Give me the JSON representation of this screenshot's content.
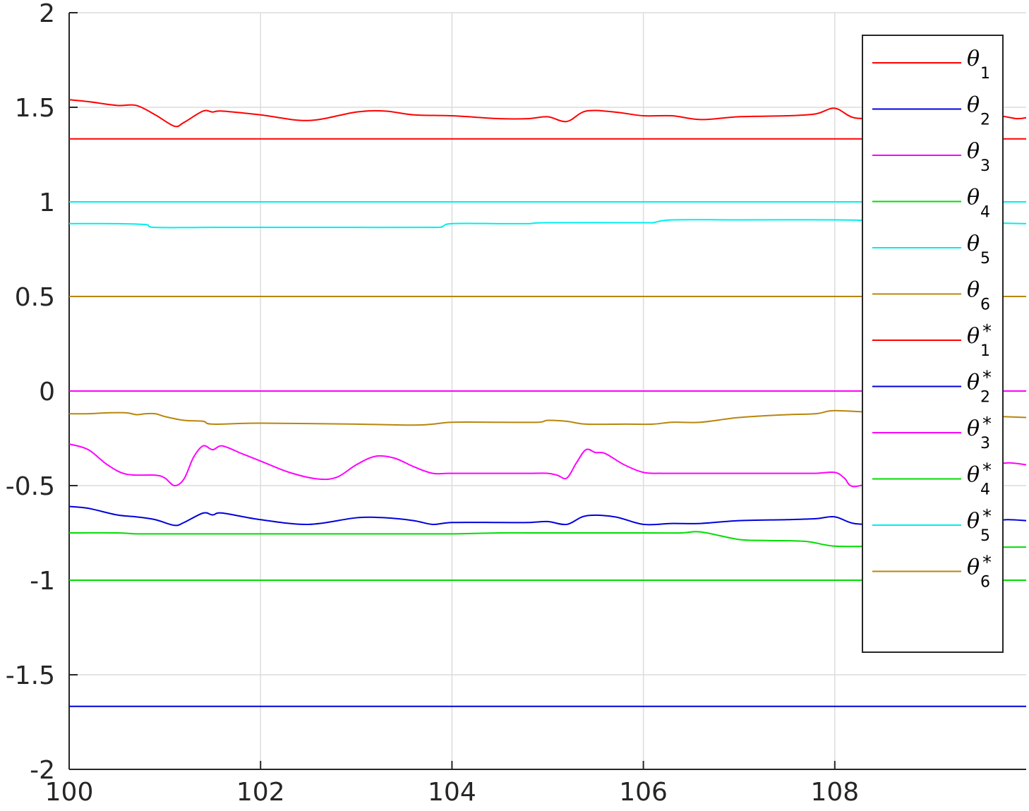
{
  "chart_data": {
    "type": "line",
    "title": "",
    "xlabel": "",
    "ylabel": "",
    "xlim": [
      100,
      110
    ],
    "ylim": [
      -2,
      2
    ],
    "xticks": [
      100,
      102,
      104,
      106,
      108
    ],
    "xtick_labels": [
      "100",
      "102",
      "104",
      "106",
      "108"
    ],
    "yticks": [
      2,
      1.5,
      1,
      0.5,
      0,
      -0.5,
      -1,
      -1.5,
      -2
    ],
    "ytick_labels": [
      "2",
      "1.5",
      "1",
      "0.5",
      "0",
      "-0.5",
      "-1",
      "-1.5",
      "-2"
    ],
    "grid": true,
    "legend_position": "top-right",
    "series": [
      {
        "name": "θ1",
        "symbol": "θ",
        "sub": "1",
        "sup": "",
        "color": "#ff0000",
        "x": [
          100,
          100.2,
          100.5,
          100.7,
          100.9,
          101.1,
          101.2,
          101.4,
          101.5,
          101.6,
          102.0,
          102.5,
          103.0,
          103.3,
          103.6,
          104.0,
          104.5,
          104.8,
          105.0,
          105.2,
          105.4,
          105.7,
          106.0,
          106.3,
          106.6,
          107.0,
          107.5,
          107.8,
          108.0,
          108.2,
          108.5,
          108.8,
          109.1,
          109.3,
          109.5,
          109.7,
          109.9,
          110
        ],
        "y": [
          1.54,
          1.53,
          1.51,
          1.51,
          1.46,
          1.4,
          1.42,
          1.48,
          1.475,
          1.48,
          1.46,
          1.43,
          1.475,
          1.48,
          1.46,
          1.455,
          1.44,
          1.44,
          1.45,
          1.425,
          1.48,
          1.475,
          1.455,
          1.455,
          1.435,
          1.45,
          1.455,
          1.465,
          1.495,
          1.445,
          1.44,
          1.435,
          1.45,
          1.46,
          1.44,
          1.455,
          1.44,
          1.445
        ]
      },
      {
        "name": "θ2",
        "symbol": "θ",
        "sub": "2",
        "sup": "",
        "color": "#0000dd",
        "x": [
          100,
          100.2,
          100.5,
          100.7,
          100.9,
          101.1,
          101.2,
          101.4,
          101.5,
          101.6,
          102.0,
          102.5,
          103.0,
          103.3,
          103.6,
          103.8,
          104.0,
          104.5,
          104.8,
          105.0,
          105.2,
          105.4,
          105.7,
          106.0,
          106.3,
          106.6,
          107.0,
          107.5,
          107.8,
          108.0,
          108.2,
          108.5,
          108.8,
          109.1,
          109.4,
          109.6,
          109.8,
          110
        ],
        "y": [
          -0.61,
          -0.62,
          -0.655,
          -0.665,
          -0.68,
          -0.71,
          -0.695,
          -0.645,
          -0.655,
          -0.645,
          -0.68,
          -0.705,
          -0.67,
          -0.67,
          -0.685,
          -0.705,
          -0.695,
          -0.695,
          -0.695,
          -0.69,
          -0.705,
          -0.66,
          -0.665,
          -0.705,
          -0.7,
          -0.7,
          -0.685,
          -0.68,
          -0.675,
          -0.665,
          -0.7,
          -0.705,
          -0.695,
          -0.69,
          -0.68,
          -0.69,
          -0.68,
          -0.685
        ]
      },
      {
        "name": "θ3",
        "symbol": "θ",
        "sub": "3",
        "sup": "",
        "color": "#ff00ff",
        "x": [
          100,
          100.2,
          100.4,
          100.6,
          100.9,
          101.0,
          101.1,
          101.2,
          101.3,
          101.4,
          101.5,
          101.6,
          101.8,
          102.0,
          102.3,
          102.6,
          102.8,
          103.0,
          103.2,
          103.4,
          103.6,
          103.8,
          104.0,
          104.5,
          104.8,
          105.0,
          105.1,
          105.2,
          105.3,
          105.4,
          105.5,
          105.6,
          105.8,
          106.0,
          106.2,
          106.6,
          107.0,
          107.5,
          107.8,
          108.0,
          108.1,
          108.2,
          108.5,
          108.8,
          109.1,
          109.4,
          109.6,
          109.8,
          110
        ],
        "y": [
          -0.28,
          -0.31,
          -0.39,
          -0.44,
          -0.445,
          -0.46,
          -0.5,
          -0.465,
          -0.35,
          -0.29,
          -0.31,
          -0.29,
          -0.33,
          -0.37,
          -0.43,
          -0.465,
          -0.455,
          -0.39,
          -0.345,
          -0.355,
          -0.4,
          -0.435,
          -0.435,
          -0.435,
          -0.435,
          -0.435,
          -0.445,
          -0.46,
          -0.38,
          -0.31,
          -0.325,
          -0.33,
          -0.39,
          -0.43,
          -0.435,
          -0.435,
          -0.435,
          -0.435,
          -0.435,
          -0.43,
          -0.46,
          -0.505,
          -0.47,
          -0.46,
          -0.445,
          -0.44,
          -0.4,
          -0.38,
          -0.39
        ]
      },
      {
        "name": "θ4",
        "symbol": "θ",
        "sub": "4",
        "sup": "",
        "color": "#00dd00",
        "x": [
          100,
          100.5,
          100.7,
          101.0,
          102.0,
          103.0,
          104.0,
          104.5,
          105.0,
          106.0,
          106.4,
          106.6,
          107.0,
          107.3,
          107.7,
          108.0,
          108.5,
          109.0,
          109.5,
          110
        ],
        "y": [
          -0.75,
          -0.75,
          -0.755,
          -0.755,
          -0.755,
          -0.755,
          -0.755,
          -0.75,
          -0.75,
          -0.75,
          -0.75,
          -0.745,
          -0.785,
          -0.79,
          -0.795,
          -0.82,
          -0.82,
          -0.82,
          -0.825,
          -0.825
        ]
      },
      {
        "name": "θ5",
        "symbol": "θ",
        "sub": "5",
        "sup": "",
        "color": "#00eeee",
        "x": [
          100,
          100.5,
          100.8,
          100.9,
          101.5,
          102.0,
          103.0,
          103.8,
          103.9,
          104.0,
          104.5,
          104.8,
          105.0,
          106.0,
          106.1,
          106.3,
          107.0,
          108.0,
          108.5,
          109.0,
          109.5,
          110
        ],
        "y": [
          0.885,
          0.885,
          0.88,
          0.865,
          0.865,
          0.865,
          0.865,
          0.865,
          0.87,
          0.885,
          0.885,
          0.885,
          0.89,
          0.89,
          0.89,
          0.905,
          0.905,
          0.905,
          0.9,
          0.895,
          0.89,
          0.885
        ]
      },
      {
        "name": "θ6",
        "symbol": "θ",
        "sub": "6",
        "sup": "",
        "color": "#b8860b",
        "x": [
          100,
          100.2,
          100.4,
          100.6,
          100.7,
          100.8,
          100.9,
          101.0,
          101.2,
          101.4,
          101.5,
          102.0,
          103.0,
          103.6,
          103.8,
          104.0,
          104.5,
          104.9,
          105.0,
          105.2,
          105.4,
          105.8,
          106.1,
          106.3,
          106.6,
          107.0,
          107.5,
          107.8,
          107.95,
          108.1,
          108.5,
          109.0,
          109.5,
          110
        ],
        "y": [
          -0.12,
          -0.12,
          -0.115,
          -0.115,
          -0.125,
          -0.12,
          -0.12,
          -0.135,
          -0.155,
          -0.16,
          -0.175,
          -0.17,
          -0.175,
          -0.18,
          -0.175,
          -0.165,
          -0.165,
          -0.165,
          -0.155,
          -0.16,
          -0.175,
          -0.175,
          -0.175,
          -0.165,
          -0.165,
          -0.14,
          -0.125,
          -0.12,
          -0.105,
          -0.105,
          -0.115,
          -0.12,
          -0.13,
          -0.14
        ]
      },
      {
        "name": "θ*1",
        "symbol": "θ",
        "sub": "1",
        "sup": "*",
        "color": "#ff0000",
        "x": [
          100,
          110
        ],
        "y": [
          1.333,
          1.333
        ]
      },
      {
        "name": "θ*2",
        "symbol": "θ",
        "sub": "2",
        "sup": "*",
        "color": "#0000dd",
        "x": [
          100,
          110
        ],
        "y": [
          -1.667,
          -1.667
        ]
      },
      {
        "name": "θ*3",
        "symbol": "θ",
        "sub": "3",
        "sup": "*",
        "color": "#ff00ff",
        "x": [
          100,
          110
        ],
        "y": [
          0.0,
          0.0
        ]
      },
      {
        "name": "θ*4",
        "symbol": "θ",
        "sub": "4",
        "sup": "*",
        "color": "#00dd00",
        "x": [
          100,
          110
        ],
        "y": [
          -1.0,
          -1.0
        ]
      },
      {
        "name": "θ*5",
        "symbol": "θ",
        "sub": "5",
        "sup": "*",
        "color": "#00eeee",
        "x": [
          100,
          110
        ],
        "y": [
          1.0,
          1.0
        ]
      },
      {
        "name": "θ*6",
        "symbol": "θ",
        "sub": "6",
        "sup": "*",
        "color": "#b8860b",
        "x": [
          100,
          110
        ],
        "y": [
          0.5,
          0.5
        ]
      }
    ]
  }
}
